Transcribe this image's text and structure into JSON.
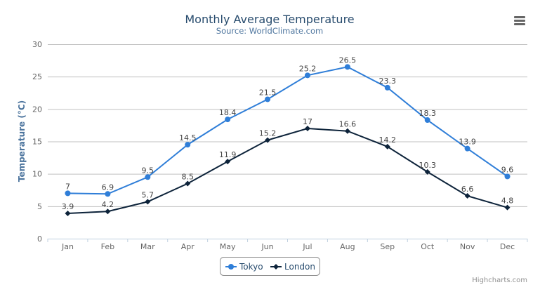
{
  "chart_data": {
    "type": "line",
    "title": "Monthly Average Temperature",
    "subtitle": "Source: WorldClimate.com",
    "xlabel": "",
    "ylabel": "Temperature (°C)",
    "categories": [
      "Jan",
      "Feb",
      "Mar",
      "Apr",
      "May",
      "Jun",
      "Jul",
      "Aug",
      "Sep",
      "Oct",
      "Nov",
      "Dec"
    ],
    "ylim": [
      0,
      30
    ],
    "yticks": [
      0,
      5,
      10,
      15,
      20,
      25,
      30
    ],
    "grid": true,
    "legend": "bottom-center",
    "series": [
      {
        "name": "Tokyo",
        "color": "#2f7ed8",
        "marker": "circle",
        "values": [
          7.0,
          6.9,
          9.5,
          14.5,
          18.4,
          21.5,
          25.2,
          26.5,
          23.3,
          18.3,
          13.9,
          9.6
        ]
      },
      {
        "name": "London",
        "color": "#0d233a",
        "marker": "diamond",
        "values": [
          3.9,
          4.2,
          5.7,
          8.5,
          11.9,
          15.2,
          17.0,
          16.6,
          14.2,
          10.3,
          6.6,
          4.8
        ]
      }
    ]
  },
  "credits": "Highcharts.com",
  "menu_icon": "hamburger-menu-icon",
  "colors": {
    "title": "#274b6d",
    "subtitle": "#4d759e",
    "axis_text": "#666666",
    "grid": "#c0c0c0"
  }
}
